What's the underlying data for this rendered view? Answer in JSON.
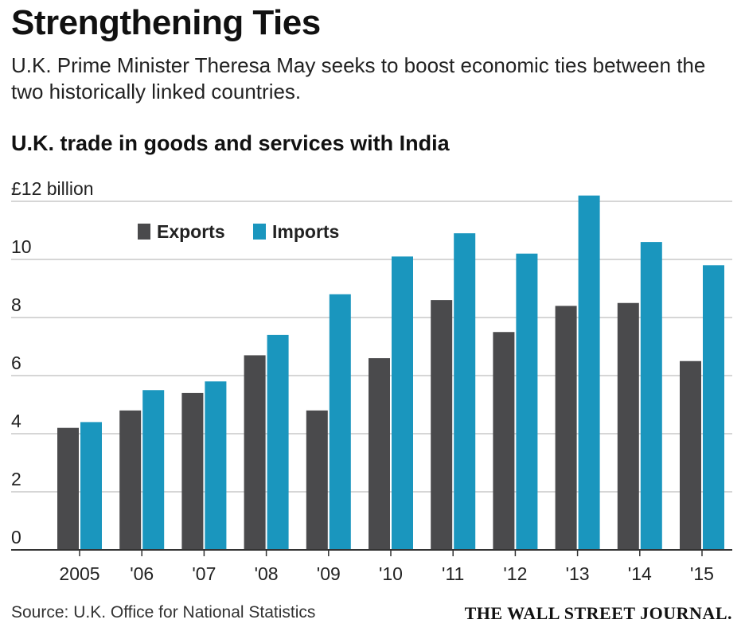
{
  "header": {
    "title": "Strengthening Ties",
    "subtitle": "U.K. Prime Minister Theresa May seeks to boost economic ties between the two historically linked countries."
  },
  "footer": {
    "source": "Source: U.K. Office for National Statistics",
    "brand": "THE WALL STREET JOURNAL."
  },
  "chart_data": {
    "type": "bar",
    "title": "U.K. trade in goods and services with India",
    "xlabel": "",
    "ylabel": "",
    "categories": [
      "2005",
      "'06",
      "'07",
      "'08",
      "'09",
      "'10",
      "'11",
      "'12",
      "'13",
      "'14",
      "'15"
    ],
    "series": [
      {
        "name": "Exports",
        "color": "#4a4a4c",
        "values": [
          4.2,
          4.8,
          5.4,
          6.7,
          4.8,
          6.6,
          8.6,
          7.5,
          8.4,
          8.5,
          6.5
        ]
      },
      {
        "name": "Imports",
        "color": "#1a96be",
        "values": [
          4.4,
          5.5,
          5.8,
          7.4,
          8.8,
          10.1,
          10.9,
          10.2,
          12.2,
          10.6,
          9.8
        ]
      }
    ],
    "y_ticks": [
      "0",
      "2",
      "4",
      "6",
      "8",
      "10",
      "£12 billion"
    ],
    "ylim": [
      0,
      12
    ],
    "grid": true,
    "legend_position": "top-left"
  }
}
